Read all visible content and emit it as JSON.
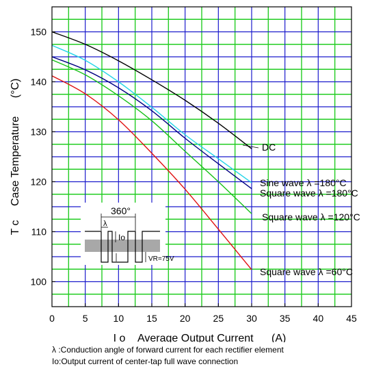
{
  "chart_data": {
    "type": "line",
    "ylabel_symbol": "T c",
    "ylabel": "Case Temperature",
    "ylabel_unit": "(°C)",
    "xlabel_symbol": "I o",
    "xlabel": "Average Output Current",
    "xlabel_unit": "(A)",
    "xlim": [
      0,
      45
    ],
    "ylim": [
      95,
      155
    ],
    "xticks": [
      0,
      5,
      10,
      15,
      20,
      25,
      30,
      35,
      40,
      45
    ],
    "yticks": [
      100,
      110,
      120,
      130,
      140,
      150
    ],
    "grid": true,
    "grid_colors": {
      "major": "#1a1acc",
      "minor": "#22cc22"
    },
    "series": [
      {
        "name": "DC",
        "color": "#000000",
        "x": [
          0,
          5,
          10,
          15,
          20,
          25,
          30
        ],
        "y": [
          150,
          147.5,
          144.2,
          140.4,
          136.3,
          131.7,
          126.6
        ]
      },
      {
        "name": "Sine wave λ =180°C",
        "color": "#22d4e8",
        "x": [
          0,
          5,
          10,
          15,
          20,
          25,
          30
        ],
        "y": [
          147.3,
          144.3,
          140,
          134.9,
          129.4,
          124.6,
          119.8
        ]
      },
      {
        "name": "Square wave λ =180°C",
        "color": "#000080",
        "x": [
          0,
          5,
          10,
          15,
          20,
          25,
          30
        ],
        "y": [
          145,
          142.4,
          138.8,
          134.2,
          128.7,
          123.6,
          118.6
        ]
      },
      {
        "name": "Square wave λ =120°C",
        "color": "#16c016",
        "x": [
          0,
          5,
          10,
          15,
          20,
          25,
          30
        ],
        "y": [
          144.4,
          141.4,
          137.2,
          132.2,
          126.1,
          120,
          113.6
        ]
      },
      {
        "name": "Square wave λ =60°C",
        "color": "#e01010",
        "x": [
          0,
          5,
          10,
          15,
          20,
          25,
          30
        ],
        "y": [
          141.2,
          137.6,
          132.4,
          125.7,
          118.5,
          110.5,
          102.4
        ]
      }
    ],
    "labels": [
      "DC",
      "Sine wave λ =180°C",
      "Square wave λ =180°C",
      "Square wave λ =120°C",
      "Square wave λ =60°C"
    ],
    "inset": {
      "angle_label": "360°",
      "lambda_label": "λ",
      "io_label": "Io",
      "vr_label": "VR=75V"
    }
  },
  "notes": [
    "λ :Conduction angle of forward current for each rectifier element",
    "Io:Output current of center-tap full wave connection"
  ]
}
